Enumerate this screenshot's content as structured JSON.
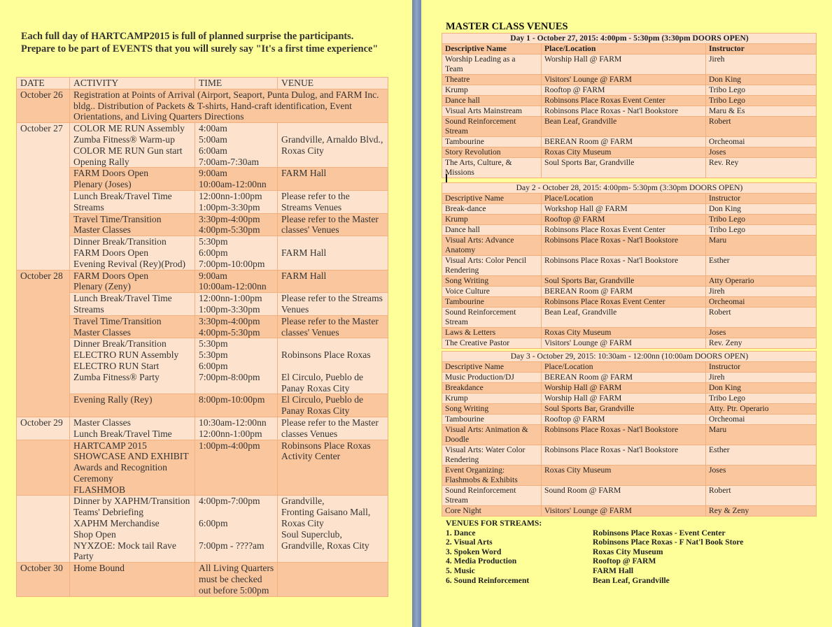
{
  "left_page": {
    "intro": "Each full day of HARTCAMP2015  is full of planned surprise the participants.  Prepare to be part of  EVENTS that you will surely say \"It's a first time experience\"",
    "schedule": {
      "headers": [
        "DATE",
        "ACTIVITY",
        "TIME",
        "VENUE"
      ],
      "groups": [
        {
          "date": "October 26",
          "entries": [
            {
              "activity": "Registration at Points of Arrival (Airport, Seaport, Punta Dulog, and FARM Inc.\nbldg.. Distribution of Packets & T-shirts, Hand-craft identification, Event\nOrientations, and Living Quarters Directions",
              "full": true
            }
          ]
        },
        {
          "date": "October 27",
          "entries": [
            {
              "activity": "COLOR ME RUN Assembly\nZumba Fitness® Warm-up\nCOLOR ME RUN Gun start\nOpening  Rally",
              "time": "4:00am\n5:00am\n6:00am\n7:00am-7:30am",
              "venue": "\nGrandville, Arnaldo Blvd.,\nRoxas City"
            },
            {
              "activity": "FARM Doors Open\nPlenary (Joses)",
              "time": "9:00am\n10:00am-12:00nn",
              "venue": "FARM Hall"
            },
            {
              "activity": "Lunch Break/Travel Time\nStreams",
              "time": "12:00nn-1:00pm\n1:00pm-3:30pm",
              "venue": "Please refer to the\nStreams Venues"
            },
            {
              "activity": "Travel Time/Transition\nMaster Classes",
              "time": "3:30pm-4:00pm\n4:00pm-5:30pm",
              "venue": "Please refer to the Master\nclasses' Venues"
            },
            {
              "activity": "Dinner Break/Transition\nFARM Doors Open\nEvening Revival (Rey)(Prod)",
              "time": "5:30pm\n6:00pm\n7:00pm-10:00pm",
              "venue": "\nFARM Hall"
            }
          ]
        },
        {
          "date": "October 28",
          "entries": [
            {
              "activity": "FARM Doors Open\nPlenary (Zeny)",
              "time": "9:00am\n10:00am-12:00nn",
              "venue": "FARM Hall"
            },
            {
              "activity": "Lunch Break/Travel Time\nStreams",
              "time": "12:00nn-1:00pm\n1:00pm-3:30pm",
              "venue": "Please refer to the Streams\nVenues"
            },
            {
              "activity": "Travel Time/Transition\nMaster Classes",
              "time": "3:30pm-4:00pm\n4:00pm-5:30pm",
              "venue": "Please refer to the Master\nclasses' Venues"
            },
            {
              "activity": "Dinner Break/Transition\nELECTRO RUN Assembly\nELECTRO RUN Start\nZumba Fitness® Party",
              "time": "5:30pm\n5:30pm\n6:00pm\n7:00pm-8:00pm",
              "venue": "\nRobinsons Place Roxas\n\nEl Circulo, Pueblo de\nPanay Roxas City"
            },
            {
              "activity": "Evening Rally (Rey)",
              "time": "8:00pm-10:00pm",
              "venue": "El Circulo, Pueblo de\nPanay Roxas City"
            }
          ]
        },
        {
          "date": "October 29",
          "entries": [
            {
              "activity": "Master Classes\nLunch Break/Travel Time",
              "time": "10:30am-12:00nn\n12:00nn-1:00pm",
              "venue": "Please refer to the Master\nclasses Venues"
            }
          ]
        },
        {
          "date": "",
          "entries": [
            {
              "activity": "HARTCAMP 2015\nSHOWCASE AND EXHIBIT\nAwards and Recognition\nCeremony\nFLASHMOB",
              "time": "1:00pm-4:00pm",
              "venue": "Robinsons Place Roxas\nActivity Center"
            }
          ]
        },
        {
          "date": "",
          "entries": [
            {
              "activity": "Dinner by XAPHM/Transition\nTeams' Debriefing\nXAPHM Merchandise\nShop Open\nNYXZOE: Mock tail Rave\nParty",
              "time": "4:00pm-7:00pm\n\n6:00pm\n\n7:00pm - ????am",
              "venue": "Grandville,\nFronting Gaisano Mall,\nRoxas City\nSoul Superclub,\nGrandville, Roxas City"
            }
          ]
        },
        {
          "date": "October 30",
          "entries": [
            {
              "activity": "Home Bound",
              "time": "All Living Quarters\nmust be checked\nout before 5:00pm",
              "venue": ""
            }
          ]
        }
      ]
    }
  },
  "right_page": {
    "title": "MASTER CLASS VENUES",
    "days": [
      {
        "title": "Day 1 - October 27, 2015: 4:00pm - 5:30pm (3:30pm DOORS OPEN)",
        "headers": [
          "Descriptive Name",
          "Place/Location",
          "Instructor"
        ],
        "rows": [
          [
            "Worship Leading as a\nTeam",
            "Worship Hall @ FARM",
            "Jireh"
          ],
          [
            "Theatre",
            "Visitors' Lounge @ FARM",
            "Don King"
          ],
          [
            "Krump",
            "Rooftop @ FARM",
            "Tribo Lego"
          ],
          [
            "Dance hall",
            "Robinsons Place Roxas Event Center",
            "Tribo Lego"
          ],
          [
            "Visual Arts Mainstream",
            "Robinsons Place Roxas - Nat'l Bookstore",
            "Maru & Es"
          ],
          [
            "Sound Reinforcement\nStream",
            "Bean Leaf, Grandville",
            "Robert"
          ],
          [
            "Tambourine",
            "BEREAN Room @ FARM",
            "Orcheomai"
          ],
          [
            "Story Revolution",
            "Roxas City Museum",
            "Joses"
          ],
          [
            "The Arts, Culture, &\nMissions",
            "Soul Sports Bar, Grandville",
            "Rev. Rey"
          ]
        ]
      },
      {
        "title": "Day 2 - October 28, 2015: 4:00pm- 5:30pm (3:30pm DOORS OPEN)",
        "headers": [
          "Descriptive Name",
          "Place/Location",
          "Instructor"
        ],
        "rows": [
          [
            "Break-dance",
            "Workshop Hall @ FARM",
            "Don King"
          ],
          [
            "Krump",
            "Rooftop @ FARM",
            "Tribo Lego"
          ],
          [
            "Dance hall",
            "Robinsons Place Roxas Event Center",
            "Tribo Lego"
          ],
          [
            "Visual Arts: Advance\nAnatomy",
            "Robinsons Place Roxas - Nat'l Bookstore",
            "Maru"
          ],
          [
            "Visual Arts: Color Pencil\nRendering",
            "Robinsons Place Roxas - Nat'l Bookstore",
            "Esther"
          ],
          [
            "Song Writing",
            "Soul Sports Bar, Grandville",
            "Atty Operario"
          ],
          [
            "Voice Culture",
            "BEREAN Room @ FARM",
            "Jireh"
          ],
          [
            "Tambourine",
            "Robinsons Place Roxas Event Center",
            "Orcheomai"
          ],
          [
            "Sound Reinforcement\nStream",
            "Bean Leaf, Grandville",
            "Robert"
          ],
          [
            "Laws & Letters",
            "Roxas City Museum",
            "Joses"
          ],
          [
            "The Creative Pastor",
            "Visitors' Lounge @ FARM",
            "Rev. Zeny"
          ]
        ]
      },
      {
        "title": "Day 3 - October 29, 2015: 10:30am - 12:00nn (10:00am DOORS OPEN)",
        "headers": [
          "Descriptive Name",
          "Place/Location",
          "Instructor"
        ],
        "rows": [
          [
            "Music Production/DJ",
            "BEREAN Room @ FARM",
            "Jireh"
          ],
          [
            "Breakdance",
            "Worship Hall @ FARM",
            "Don King"
          ],
          [
            "Krump",
            "Worship Hall @ FARM",
            "Tribo Lego"
          ],
          [
            "Song Writing",
            "Soul Sports Bar, Grandville",
            "Atty. Ptr. Operario"
          ],
          [
            "Tambourine",
            "Rooftop @ FARM",
            "Orcheomai"
          ],
          [
            "Visual Arts: Animation &\nDoodle",
            "Robinsons Place Roxas - Nat'l Bookstore",
            "Maru"
          ],
          [
            "Visual Arts: Water Color\nRendering",
            "Robinsons Place Roxas - Nat'l Bookstore",
            "Esther"
          ],
          [
            "Event Organizing:\nFlashmobs & Exhibits",
            "Roxas City Museum",
            "Joses"
          ],
          [
            "Sound Reinforcement\nStream",
            "Sound Room @ FARM",
            "Robert"
          ],
          [
            "Core Night",
            "Visitors' Lounge @ FARM",
            " Rey & Zeny"
          ]
        ]
      }
    ],
    "streams": {
      "title": "VENUES FOR STREAMS:",
      "items": [
        {
          "name": "1. Dance",
          "venue": "Robinsons Place Roxas - Event Center"
        },
        {
          "name": "2. Visual Arts",
          "venue": "Robinsons Place Roxas - F Nat'l Book Store"
        },
        {
          "name": "3. Spoken Word",
          "venue": "Roxas City Museum"
        },
        {
          "name": "4. Media Production",
          "venue": "Rooftop @ FARM"
        },
        {
          "name": "5. Music",
          "venue": "FARM Hall"
        },
        {
          "name": "6. Sound Reinforcement",
          "venue": "Bean Leaf, Grandville"
        }
      ]
    }
  },
  "colors": {
    "page": "#ffff99",
    "row_light": "#fde3cd",
    "row_dark": "#fac69e",
    "border": "#f3b07f",
    "separator": "#7f96b8"
  }
}
